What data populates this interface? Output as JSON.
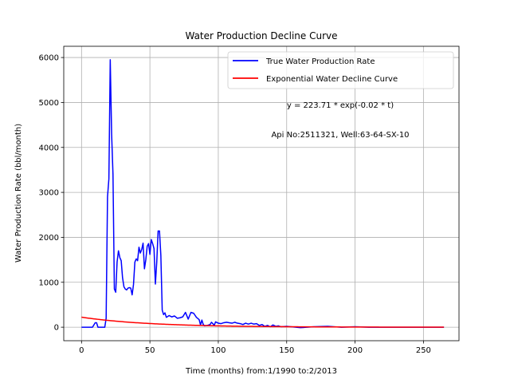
{
  "chart_data": {
    "type": "line",
    "title": "Water Production Decline Curve",
    "xlabel": "Time (months) from:1/1990 to:2/2013",
    "ylabel": "Water Production Rate (bbl/month)",
    "xlim": [
      -13,
      276
    ],
    "ylim": [
      -300,
      6250
    ],
    "xticks": [
      0,
      50,
      100,
      150,
      200,
      250
    ],
    "yticks": [
      0,
      1000,
      2000,
      3000,
      4000,
      5000,
      6000
    ],
    "grid": true,
    "legend_position": "top-right",
    "annotations": [
      "y = 223.71 * exp(-0.02 * t)",
      "Api No:2511321, Well:63-64-SX-10"
    ],
    "series": [
      {
        "name": "True Water Production Rate",
        "color": "#0000ff",
        "points": [
          [
            0,
            0
          ],
          [
            4,
            0
          ],
          [
            8,
            0
          ],
          [
            10,
            100
          ],
          [
            11,
            100
          ],
          [
            12,
            0
          ],
          [
            14,
            0
          ],
          [
            17,
            0
          ],
          [
            18,
            200
          ],
          [
            19,
            2900
          ],
          [
            20,
            3300
          ],
          [
            21,
            5950
          ],
          [
            22,
            4300
          ],
          [
            23,
            3400
          ],
          [
            24,
            850
          ],
          [
            25,
            780
          ],
          [
            26,
            1450
          ],
          [
            27,
            1700
          ],
          [
            28,
            1550
          ],
          [
            29,
            1480
          ],
          [
            30,
            1100
          ],
          [
            31,
            900
          ],
          [
            32,
            850
          ],
          [
            33,
            830
          ],
          [
            34,
            870
          ],
          [
            35,
            880
          ],
          [
            36,
            870
          ],
          [
            37,
            720
          ],
          [
            38,
            950
          ],
          [
            39,
            1450
          ],
          [
            40,
            1520
          ],
          [
            41,
            1480
          ],
          [
            42,
            1780
          ],
          [
            43,
            1650
          ],
          [
            44,
            1730
          ],
          [
            45,
            1870
          ],
          [
            46,
            1300
          ],
          [
            47,
            1500
          ],
          [
            48,
            1800
          ],
          [
            49,
            1860
          ],
          [
            50,
            1620
          ],
          [
            51,
            1950
          ],
          [
            52,
            1860
          ],
          [
            53,
            1750
          ],
          [
            54,
            960
          ],
          [
            55,
            1450
          ],
          [
            56,
            2140
          ],
          [
            57,
            2140
          ],
          [
            58,
            1600
          ],
          [
            59,
            380
          ],
          [
            60,
            280
          ],
          [
            61,
            320
          ],
          [
            62,
            220
          ],
          [
            64,
            260
          ],
          [
            66,
            230
          ],
          [
            68,
            250
          ],
          [
            70,
            200
          ],
          [
            72,
            210
          ],
          [
            74,
            230
          ],
          [
            76,
            330
          ],
          [
            78,
            180
          ],
          [
            80,
            330
          ],
          [
            82,
            310
          ],
          [
            84,
            220
          ],
          [
            86,
            170
          ],
          [
            87,
            50
          ],
          [
            88,
            160
          ],
          [
            89,
            60
          ],
          [
            90,
            30
          ],
          [
            92,
            40
          ],
          [
            94,
            60
          ],
          [
            95,
            110
          ],
          [
            96,
            80
          ],
          [
            97,
            40
          ],
          [
            98,
            120
          ],
          [
            100,
            90
          ],
          [
            102,
            80
          ],
          [
            104,
            100
          ],
          [
            106,
            110
          ],
          [
            108,
            100
          ],
          [
            110,
            90
          ],
          [
            112,
            110
          ],
          [
            114,
            90
          ],
          [
            116,
            80
          ],
          [
            118,
            60
          ],
          [
            120,
            90
          ],
          [
            122,
            70
          ],
          [
            124,
            90
          ],
          [
            126,
            70
          ],
          [
            128,
            80
          ],
          [
            130,
            40
          ],
          [
            132,
            60
          ],
          [
            134,
            20
          ],
          [
            136,
            40
          ],
          [
            138,
            10
          ],
          [
            140,
            50
          ],
          [
            142,
            20
          ],
          [
            144,
            30
          ],
          [
            146,
            10
          ],
          [
            150,
            20
          ],
          [
            160,
            -10
          ],
          [
            170,
            10
          ],
          [
            180,
            20
          ],
          [
            190,
            0
          ],
          [
            200,
            10
          ],
          [
            210,
            0
          ],
          [
            220,
            0
          ],
          [
            230,
            0
          ],
          [
            240,
            0
          ],
          [
            250,
            0
          ],
          [
            265,
            0
          ]
        ]
      },
      {
        "name": "Exponential Water Decline Curve",
        "color": "#ff0000",
        "function": {
          "a": 223.71,
          "b": -0.02
        },
        "x_range": [
          0,
          265
        ]
      }
    ]
  }
}
